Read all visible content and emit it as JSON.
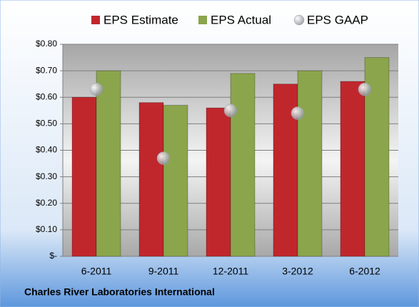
{
  "chart_data": {
    "type": "bar",
    "categories": [
      "6-2011",
      "9-2011",
      "12-2011",
      "3-2012",
      "6-2012"
    ],
    "series": [
      {
        "name": "EPS Estimate",
        "color": "#c0272d",
        "values": [
          0.6,
          0.58,
          0.56,
          0.65,
          0.66
        ]
      },
      {
        "name": "EPS Actual",
        "color": "#8aa54b",
        "values": [
          0.7,
          0.57,
          0.69,
          0.7,
          0.75
        ]
      },
      {
        "name": "EPS GAAP",
        "color": "#b8bcc4",
        "type": "scatter",
        "values": [
          0.63,
          0.37,
          0.55,
          0.54,
          0.63
        ]
      }
    ],
    "ylim": [
      0,
      0.8
    ],
    "yticks": [
      {
        "value": 0,
        "label": "$-"
      },
      {
        "value": 0.1,
        "label": "$0.10"
      },
      {
        "value": 0.2,
        "label": "$0.20"
      },
      {
        "value": 0.3,
        "label": "$0.30"
      },
      {
        "value": 0.4,
        "label": "$0.40"
      },
      {
        "value": 0.5,
        "label": "$0.50"
      },
      {
        "value": 0.6,
        "label": "$0.60"
      },
      {
        "value": 0.7,
        "label": "$0.70"
      },
      {
        "value": 0.8,
        "label": "$0.80"
      }
    ],
    "grid": true,
    "legend": "top",
    "footer": "Charles River Laboratories International"
  }
}
